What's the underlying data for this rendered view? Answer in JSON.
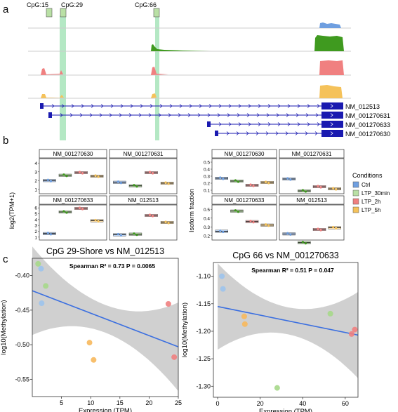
{
  "panel_labels": {
    "a": "a",
    "b": "b",
    "c": "c"
  },
  "colors": {
    "Ctrl": "#6f9fe0",
    "LTP_30min": "#3f9a1f",
    "LTP_2h": "#f08080",
    "LTP_5h": "#f5c25a",
    "fit_line": "#3b6fe0",
    "ci_band": "#c8c8c8",
    "cpg_highlight": "#9be0b0",
    "gene_model": "#1a1ab0"
  },
  "panel_a": {
    "cpg_labels": [
      "CpG:15",
      "CpG:29",
      "CpG:66"
    ],
    "tracks": [
      "Ctrl",
      "LTP_30min",
      "LTP_2h",
      "LTP_5h"
    ],
    "transcripts": [
      "NM_012513",
      "NM_001270631",
      "NM_001270633",
      "NM_001270630"
    ]
  },
  "panel_b": {
    "legend_title": "Conditions",
    "legend_items": [
      "Ctrl",
      "LTP_30min",
      "LTP_2h",
      "LTP_5h"
    ],
    "left_ylabel": "log2(TPM+1)",
    "right_ylabel": "Isoform fraction",
    "left_facets": [
      {
        "title": "NM_001270630",
        "yticks": [
          "1",
          "2",
          "3",
          "4"
        ],
        "medians": [
          2.0,
          2.6,
          2.9,
          2.5
        ]
      },
      {
        "title": "NM_001270631",
        "yticks": [
          "1",
          "2",
          "3",
          "4"
        ],
        "medians": [
          1.8,
          1.4,
          2.9,
          1.7
        ]
      },
      {
        "title": "NM_001270633",
        "yticks": [
          "1",
          "2",
          "3",
          "4",
          "5",
          "6"
        ],
        "medians": [
          1.6,
          5.3,
          5.9,
          3.8
        ]
      },
      {
        "title": "NM_012513",
        "yticks": [
          "1",
          "2",
          "3",
          "4",
          "5",
          "6"
        ],
        "medians": [
          1.4,
          1.5,
          4.7,
          3.5
        ]
      }
    ],
    "right_facets": [
      {
        "title": "NM_001270630",
        "yticks": [
          "0.1",
          "0.2",
          "0.3",
          "0.4",
          "0.5"
        ],
        "medians": [
          0.27,
          0.23,
          0.17,
          0.21
        ]
      },
      {
        "title": "NM_001270631",
        "yticks": [
          "0.1",
          "0.2",
          "0.3",
          "0.4",
          "0.5"
        ],
        "medians": [
          0.26,
          0.09,
          0.15,
          0.12
        ]
      },
      {
        "title": "NM_001270633",
        "yticks": [
          "0.2",
          "0.3",
          "0.4",
          "0.5"
        ],
        "medians": [
          0.25,
          0.48,
          0.36,
          0.32
        ]
      },
      {
        "title": "NM_012513",
        "yticks": [
          "0.2",
          "0.3",
          "0.4",
          "0.5"
        ],
        "medians": [
          0.22,
          0.12,
          0.27,
          0.29
        ]
      }
    ]
  },
  "chart_data": [
    {
      "type": "scatter",
      "title": "CpG 29-Shore vs NM_012513",
      "annotation": "Spearman R² = 0.73 P = 0.0065",
      "xlabel": "Expression (TPM)",
      "ylabel": "log10(Methylation)",
      "xlim": [
        0,
        25
      ],
      "ylim": [
        -0.575,
        -0.375
      ],
      "xticks": [
        "5",
        "10",
        "15",
        "20",
        "25"
      ],
      "yticks": [
        "-0.40",
        "-0.45",
        "-0.50",
        "-0.55"
      ],
      "points": [
        {
          "x": 1.0,
          "y": -0.383,
          "group": "LTP_30min"
        },
        {
          "x": 1.5,
          "y": -0.39,
          "group": "Ctrl"
        },
        {
          "x": 2.3,
          "y": -0.415,
          "group": "LTP_30min"
        },
        {
          "x": 1.6,
          "y": -0.44,
          "group": "Ctrl"
        },
        {
          "x": 9.8,
          "y": -0.497,
          "group": "LTP_5h"
        },
        {
          "x": 10.5,
          "y": -0.522,
          "group": "LTP_5h"
        },
        {
          "x": 23.3,
          "y": -0.441,
          "group": "LTP_2h"
        },
        {
          "x": 24.3,
          "y": -0.518,
          "group": "LTP_2h"
        }
      ],
      "fit": {
        "x": [
          0,
          25
        ],
        "y": [
          -0.422,
          -0.503
        ]
      }
    },
    {
      "type": "scatter",
      "title": "CpG 66 vs NM_001270633",
      "annotation": "Spearman R² = 0.51 P = 0.047",
      "xlabel": "Expression (TPM)",
      "ylabel": "log10(Methylation)",
      "xlim": [
        -2,
        66
      ],
      "ylim": [
        -1.32,
        -1.075
      ],
      "xticks": [
        "0",
        "20",
        "40",
        "60"
      ],
      "yticks": [
        "-1.10",
        "-1.15",
        "-1.20",
        "-1.25",
        "-1.30"
      ],
      "points": [
        {
          "x": 2.0,
          "y": -1.1,
          "group": "Ctrl"
        },
        {
          "x": 2.5,
          "y": -1.123,
          "group": "Ctrl"
        },
        {
          "x": 12.5,
          "y": -1.173,
          "group": "LTP_5h"
        },
        {
          "x": 12.8,
          "y": -1.187,
          "group": "LTP_5h"
        },
        {
          "x": 28.0,
          "y": -1.303,
          "group": "LTP_30min"
        },
        {
          "x": 53.0,
          "y": -1.168,
          "group": "LTP_30min"
        },
        {
          "x": 63.0,
          "y": -1.205,
          "group": "LTP_2h"
        },
        {
          "x": 64.5,
          "y": -1.197,
          "group": "LTP_2h"
        }
      ],
      "fit": {
        "x": [
          0,
          66
        ],
        "y": [
          -1.155,
          -1.207
        ]
      }
    }
  ]
}
